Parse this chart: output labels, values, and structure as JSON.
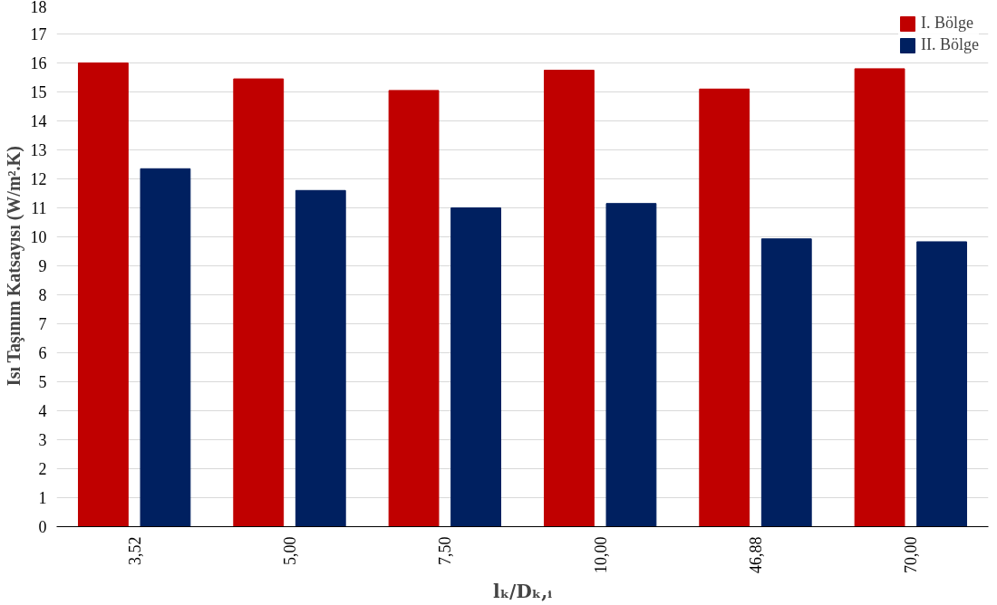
{
  "chart_data": {
    "type": "bar",
    "xlabel": "lₖ/Dₖ,ᵢ",
    "ylabel": "Isı Taşınım Katsayısı (W/m².K)",
    "categories": [
      "3,52",
      "5,00",
      "7,50",
      "10,00",
      "46,88",
      "70,00"
    ],
    "series": [
      {
        "name": "I. Bölge",
        "color": "#c00000",
        "values": [
          16.0,
          15.45,
          15.05,
          15.75,
          15.1,
          15.8
        ]
      },
      {
        "name": "II. Bölge",
        "color": "#002060",
        "values": [
          12.35,
          11.6,
          11.0,
          11.15,
          9.93,
          9.83
        ]
      }
    ],
    "ylim": [
      0,
      18
    ],
    "yticks": [
      0,
      1,
      2,
      3,
      4,
      5,
      6,
      7,
      8,
      9,
      10,
      11,
      12,
      13,
      14,
      15,
      16,
      17,
      18
    ],
    "grid": "y",
    "legend": "top right"
  }
}
